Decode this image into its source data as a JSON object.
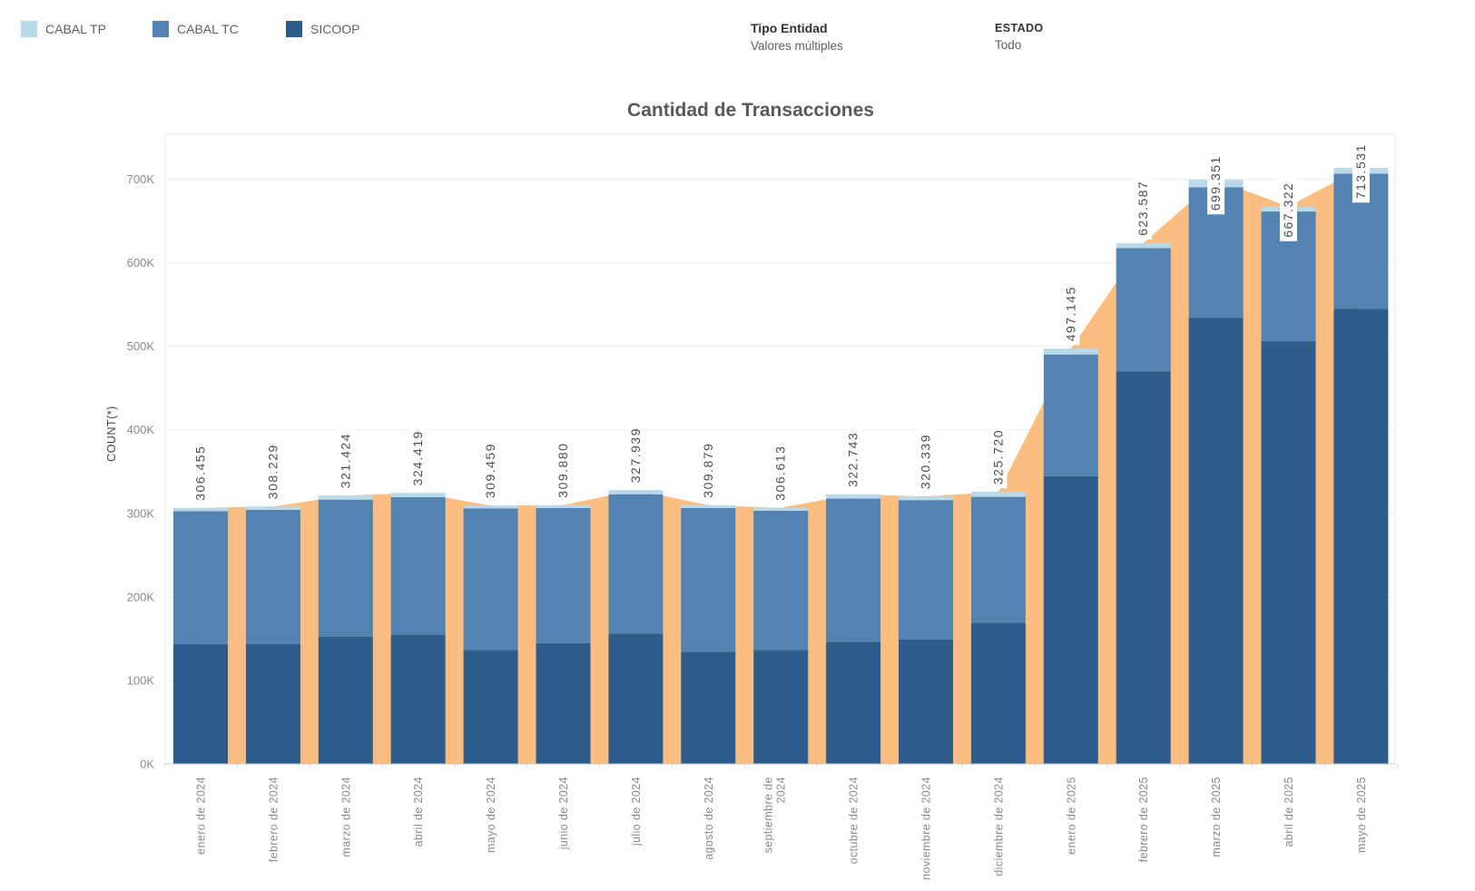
{
  "legend": {
    "items": [
      {
        "label": "CABAL TP",
        "color": "#b9d9ea"
      },
      {
        "label": "CABAL TC",
        "color": "#5283b1"
      },
      {
        "label": "SICOOP",
        "color": "#2d5d8b"
      }
    ]
  },
  "filters": [
    {
      "label": "Tipo Entidad",
      "value": "Valores múltiples"
    },
    {
      "label": "ESTADO",
      "value": "Todo"
    }
  ],
  "chart_data": {
    "type": "bar",
    "subtype": "stacked-bars-with-total-area-behind",
    "title": "Cantidad de Transacciones",
    "xlabel": "",
    "ylabel": "COUNT(*)",
    "ylim": [
      0,
      754000
    ],
    "ytick_labels": [
      "0K",
      "100K",
      "200K",
      "300K",
      "400K",
      "500K",
      "600K",
      "700K"
    ],
    "grid": true,
    "legend_position": "top-left",
    "categories": [
      "enero de 2024",
      "febrero de 2024",
      "marzo de 2024",
      "abril de 2024",
      "mayo de 2024",
      "junio de 2024",
      "julio de 2024",
      "agosto de 2024",
      "septiembre de 2024",
      "octubre de 2024",
      "noviembre de 2024",
      "diciembre de 2024",
      "enero de 2025",
      "febrero de 2025",
      "marzo de 2025",
      "abril de 2025",
      "mayo de 2025"
    ],
    "category_lines": [
      [
        "enero de 2024"
      ],
      [
        "febrero de 2024"
      ],
      [
        "marzo de 2024"
      ],
      [
        "abril de 2024"
      ],
      [
        "mayo de 2024"
      ],
      [
        "junio de 2024"
      ],
      [
        "julio de 2024"
      ],
      [
        "agosto de 2024"
      ],
      [
        "septiembre de",
        "2024"
      ],
      [
        "octubre de 2024"
      ],
      [
        "noviembre de 2024"
      ],
      [
        "diciembre de 2024"
      ],
      [
        "enero de 2025"
      ],
      [
        "febrero de 2025"
      ],
      [
        "marzo de 2025"
      ],
      [
        "abril de 2025"
      ],
      [
        "mayo de 2025"
      ]
    ],
    "totals": [
      306455,
      308229,
      321424,
      324419,
      309459,
      309880,
      327939,
      309879,
      306613,
      322743,
      320339,
      325720,
      497145,
      623587,
      699351,
      667322,
      713531
    ],
    "total_labels": [
      "306.455",
      "308.229",
      "321.424",
      "324.419",
      "309.459",
      "309.880",
      "327.939",
      "309.879",
      "306.613",
      "322.743",
      "320.339",
      "325.720",
      "497.145",
      "623.587",
      "699.351",
      "667.322",
      "713.531"
    ],
    "stack_order": "bottom-to-top",
    "series": [
      {
        "name": "SICOOP",
        "color": "#2d5d8b",
        "values": [
          143400,
          143400,
          152400,
          155000,
          136500,
          144500,
          156000,
          134300,
          136500,
          146300,
          148800,
          169100,
          344500,
          470000,
          534000,
          506000,
          545000
        ]
      },
      {
        "name": "CABAL TC",
        "color": "#5283b1",
        "values": [
          159055,
          160829,
          164024,
          164419,
          169459,
          161880,
          166939,
          172079,
          166613,
          171443,
          167039,
          150620,
          145645,
          147587,
          156351,
          155322,
          161531
        ]
      },
      {
        "name": "CABAL TP",
        "color": "#b9d9ea",
        "values": [
          4000,
          4000,
          5000,
          5000,
          3500,
          3500,
          5000,
          3500,
          3500,
          5000,
          4500,
          6000,
          7000,
          6000,
          9000,
          6000,
          7000
        ]
      }
    ],
    "area": {
      "name": "Total (área)",
      "color": "#fcbe80",
      "follows": "totals"
    }
  }
}
